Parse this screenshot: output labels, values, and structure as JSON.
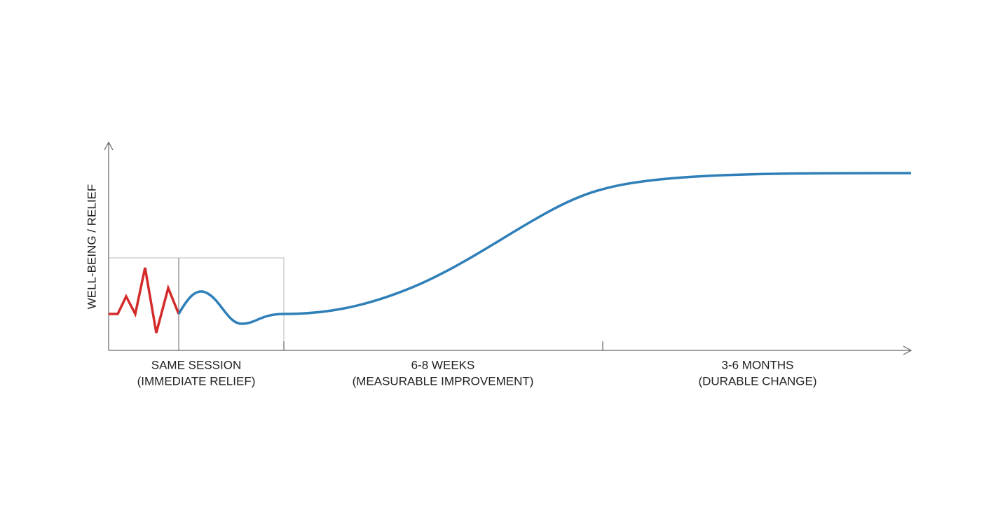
{
  "y_axis_label": "WELL-BEING / RELIEF",
  "phases": [
    {
      "title": "SAME SESSION",
      "subtitle": "(IMMEDIATE RELIEF)"
    },
    {
      "title": "6-8 WEEKS",
      "subtitle": "(MEASURABLE IMPROVEMENT)"
    },
    {
      "title": "3-6 MONTHS",
      "subtitle": "(DURABLE CHANGE)"
    }
  ]
}
